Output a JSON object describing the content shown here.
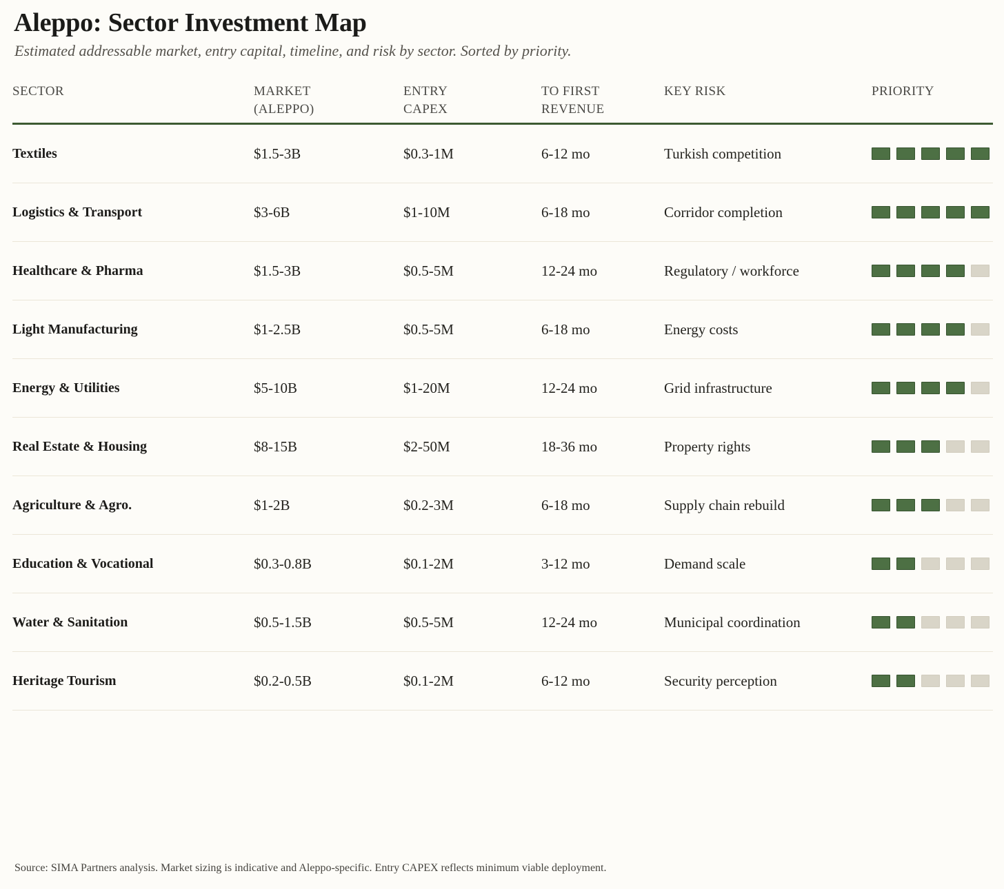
{
  "colors": {
    "header_rule": "#3d5a32",
    "priority_filled": "#4d7044",
    "priority_filled_border": "#35522e",
    "priority_empty": "#d9d5c8",
    "row_separator": "#ebe6d8",
    "background": "#fdfcf8"
  },
  "chart_data": {
    "type": "table",
    "title": "Aleppo: Sector Investment Map",
    "subtitle": "Estimated addressable market, entry capital, timeline, and risk by sector. Sorted by priority.",
    "columns": [
      "SECTOR",
      "MARKET (ALEPPO)",
      "ENTRY CAPEX",
      "TO FIRST REVENUE",
      "KEY RISK",
      "PRIORITY"
    ],
    "priority_max": 5,
    "rows": [
      {
        "sector": "Textiles",
        "market": "$1.5-3B",
        "entry_capex": "$0.3-1M",
        "to_first_revenue": "6-12 mo",
        "key_risk": "Turkish competition",
        "priority": 5
      },
      {
        "sector": "Logistics & Transport",
        "market": "$3-6B",
        "entry_capex": "$1-10M",
        "to_first_revenue": "6-18 mo",
        "key_risk": "Corridor completion",
        "priority": 5
      },
      {
        "sector": "Healthcare & Pharma",
        "market": "$1.5-3B",
        "entry_capex": "$0.5-5M",
        "to_first_revenue": "12-24 mo",
        "key_risk": "Regulatory / workforce",
        "priority": 4
      },
      {
        "sector": "Light Manufacturing",
        "market": "$1-2.5B",
        "entry_capex": "$0.5-5M",
        "to_first_revenue": "6-18 mo",
        "key_risk": "Energy costs",
        "priority": 4
      },
      {
        "sector": "Energy & Utilities",
        "market": "$5-10B",
        "entry_capex": "$1-20M",
        "to_first_revenue": "12-24 mo",
        "key_risk": "Grid infrastructure",
        "priority": 4
      },
      {
        "sector": "Real Estate & Housing",
        "market": "$8-15B",
        "entry_capex": "$2-50M",
        "to_first_revenue": "18-36 mo",
        "key_risk": "Property rights",
        "priority": 3
      },
      {
        "sector": "Agriculture & Agro.",
        "market": "$1-2B",
        "entry_capex": "$0.2-3M",
        "to_first_revenue": "6-18 mo",
        "key_risk": "Supply chain rebuild",
        "priority": 3
      },
      {
        "sector": "Education & Vocational",
        "market": "$0.3-0.8B",
        "entry_capex": "$0.1-2M",
        "to_first_revenue": "3-12 mo",
        "key_risk": "Demand scale",
        "priority": 2
      },
      {
        "sector": "Water & Sanitation",
        "market": "$0.5-1.5B",
        "entry_capex": "$0.5-5M",
        "to_first_revenue": "12-24 mo",
        "key_risk": "Municipal coordination",
        "priority": 2
      },
      {
        "sector": "Heritage Tourism",
        "market": "$0.2-0.5B",
        "entry_capex": "$0.1-2M",
        "to_first_revenue": "6-12 mo",
        "key_risk": "Security perception",
        "priority": 2
      }
    ],
    "source_note": "Source: SIMA Partners analysis. Market sizing is indicative and Aleppo-specific. Entry CAPEX reflects minimum viable deployment."
  }
}
